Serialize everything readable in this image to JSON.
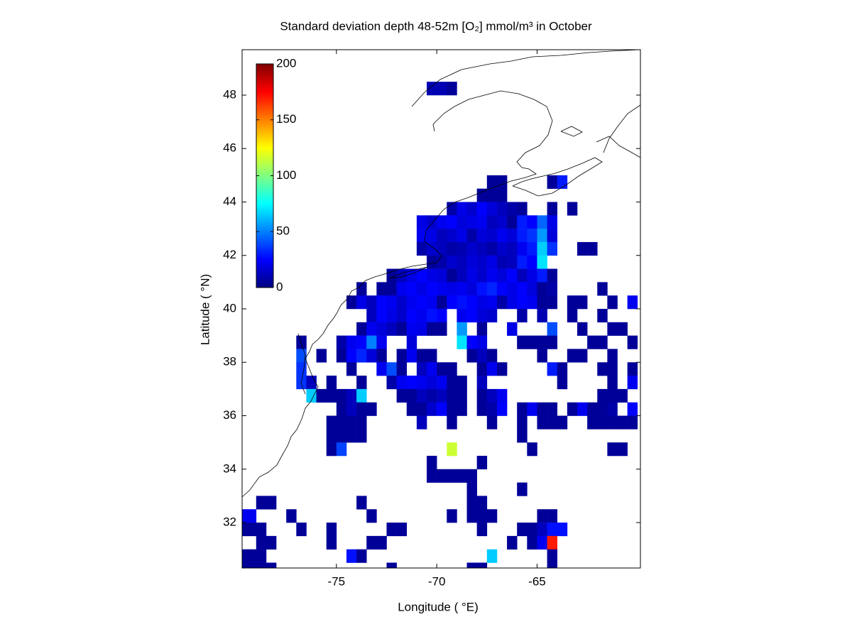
{
  "chart_data": {
    "type": "heatmap",
    "title": "Standard deviation depth 48-52m [O₂] mmol/m³ in October",
    "xlabel": "Longitude ( °E)",
    "ylabel": "Latitude ( °N)",
    "colormap": "jet",
    "clim": [
      0,
      200
    ],
    "colorbar_ticks": [
      0,
      50,
      100,
      150,
      200
    ],
    "xlim": [
      -79.7,
      -59.85
    ],
    "ylim": [
      30.3,
      49.7
    ],
    "xticks": [
      -75,
      -70,
      -65
    ],
    "yticks": [
      32,
      34,
      36,
      38,
      40,
      42,
      44,
      46,
      48
    ],
    "x": [
      -79.75,
      -79.25,
      -78.75,
      -78.25,
      -77.75,
      -77.25,
      -76.75,
      -76.25,
      -75.75,
      -75.25,
      -74.75,
      -74.25,
      -73.75,
      -73.25,
      -72.75,
      -72.25,
      -71.75,
      -71.25,
      -70.75,
      -70.25,
      -69.75,
      -69.25,
      -68.75,
      -68.25,
      -67.75,
      -67.25,
      -66.75,
      -66.25,
      -65.75,
      -65.25,
      -64.75,
      -64.25,
      -63.75,
      -63.25,
      -62.75,
      -62.25,
      -61.75,
      -61.25,
      -60.75,
      -60.25
    ],
    "y": [
      48.25,
      44.75,
      44.25,
      43.75,
      43.25,
      42.75,
      42.25,
      41.75,
      41.25,
      40.75,
      40.25,
      39.75,
      39.25,
      38.75,
      38.25,
      37.75,
      37.25,
      36.75,
      36.25,
      35.75,
      35.25,
      34.75,
      34.25,
      33.75,
      33.25,
      32.75,
      32.25,
      31.75,
      31.25,
      30.75,
      30.25
    ],
    "z": [
      [
        null,
        null,
        null,
        null,
        null,
        null,
        null,
        null,
        null,
        null,
        null,
        null,
        null,
        null,
        null,
        null,
        null,
        null,
        null,
        10,
        10,
        5,
        null,
        null,
        null,
        null,
        null,
        null,
        null,
        null,
        null,
        null,
        null,
        null,
        null,
        null,
        null,
        null,
        null,
        null
      ],
      [
        null,
        null,
        null,
        null,
        null,
        null,
        null,
        null,
        null,
        null,
        null,
        null,
        null,
        null,
        null,
        null,
        null,
        null,
        null,
        null,
        null,
        null,
        null,
        null,
        null,
        5,
        5,
        null,
        null,
        null,
        null,
        5,
        30,
        null,
        null,
        null,
        null,
        null,
        null,
        null
      ],
      [
        null,
        null,
        null,
        null,
        null,
        null,
        null,
        null,
        null,
        null,
        null,
        null,
        null,
        null,
        null,
        null,
        null,
        null,
        null,
        null,
        null,
        null,
        null,
        null,
        5,
        5,
        5,
        null,
        null,
        null,
        null,
        null,
        null,
        null,
        null,
        null,
        null,
        null,
        null,
        null
      ],
      [
        null,
        null,
        null,
        null,
        null,
        null,
        null,
        null,
        null,
        null,
        null,
        null,
        null,
        null,
        null,
        null,
        null,
        null,
        null,
        null,
        null,
        8,
        20,
        15,
        25,
        18,
        12,
        8,
        5,
        null,
        null,
        5,
        null,
        5,
        null,
        null,
        null,
        null,
        null,
        null
      ],
      [
        null,
        null,
        null,
        null,
        null,
        null,
        null,
        null,
        null,
        null,
        null,
        null,
        null,
        null,
        null,
        null,
        null,
        null,
        20,
        15,
        22,
        25,
        18,
        20,
        22,
        12,
        15,
        5,
        30,
        25,
        45,
        20,
        null,
        null,
        null,
        null,
        null,
        null,
        null,
        null
      ],
      [
        null,
        null,
        null,
        null,
        null,
        null,
        null,
        null,
        null,
        null,
        null,
        null,
        null,
        null,
        null,
        null,
        null,
        null,
        22,
        20,
        12,
        15,
        20,
        8,
        18,
        15,
        22,
        18,
        30,
        35,
        55,
        18,
        null,
        null,
        null,
        null,
        null,
        null,
        null,
        null
      ],
      [
        null,
        null,
        null,
        null,
        null,
        null,
        null,
        null,
        null,
        null,
        null,
        null,
        null,
        null,
        null,
        null,
        null,
        null,
        8,
        15,
        12,
        8,
        10,
        15,
        12,
        8,
        15,
        12,
        22,
        30,
        65,
        35,
        null,
        null,
        5,
        5,
        null,
        null,
        null,
        null
      ],
      [
        null,
        null,
        null,
        null,
        null,
        null,
        null,
        null,
        null,
        null,
        null,
        null,
        null,
        null,
        null,
        null,
        null,
        null,
        null,
        5,
        8,
        15,
        12,
        18,
        15,
        20,
        10,
        12,
        30,
        25,
        70,
        null,
        null,
        null,
        null,
        null,
        null,
        null,
        null,
        null
      ],
      [
        null,
        null,
        null,
        null,
        null,
        null,
        null,
        null,
        null,
        null,
        null,
        null,
        null,
        null,
        null,
        5,
        12,
        20,
        25,
        20,
        18,
        5,
        12,
        20,
        15,
        22,
        18,
        25,
        12,
        20,
        30,
        5,
        null,
        null,
        null,
        null,
        null,
        null,
        null,
        null
      ],
      [
        null,
        null,
        null,
        null,
        null,
        null,
        null,
        null,
        null,
        null,
        null,
        null,
        5,
        null,
        5,
        5,
        22,
        25,
        20,
        25,
        22,
        20,
        22,
        18,
        28,
        32,
        25,
        20,
        25,
        18,
        5,
        8,
        null,
        null,
        null,
        null,
        5,
        null,
        null,
        null
      ],
      [
        null,
        null,
        null,
        null,
        null,
        null,
        null,
        null,
        null,
        null,
        null,
        5,
        20,
        12,
        25,
        22,
        15,
        22,
        25,
        22,
        5,
        25,
        28,
        25,
        20,
        22,
        8,
        20,
        25,
        22,
        5,
        5,
        null,
        5,
        5,
        null,
        null,
        5,
        null,
        22
      ],
      [
        null,
        null,
        null,
        null,
        null,
        null,
        null,
        null,
        null,
        null,
        null,
        null,
        null,
        12,
        25,
        20,
        15,
        25,
        22,
        28,
        25,
        null,
        22,
        25,
        18,
        15,
        null,
        null,
        8,
        null,
        10,
        null,
        null,
        5,
        null,
        null,
        5,
        null,
        null,
        null
      ],
      [
        null,
        null,
        null,
        null,
        null,
        null,
        null,
        null,
        null,
        null,
        null,
        null,
        5,
        22,
        18,
        12,
        5,
        22,
        20,
        5,
        5,
        null,
        55,
        null,
        5,
        null,
        null,
        20,
        null,
        null,
        null,
        40,
        null,
        null,
        5,
        null,
        null,
        5,
        5,
        null
      ],
      [
        null,
        null,
        null,
        null,
        null,
        null,
        5,
        null,
        null,
        null,
        8,
        22,
        25,
        50,
        22,
        null,
        null,
        18,
        null,
        null,
        null,
        null,
        70,
        25,
        20,
        null,
        null,
        null,
        5,
        5,
        5,
        5,
        null,
        null,
        null,
        5,
        5,
        null,
        null,
        5
      ],
      [
        null,
        null,
        null,
        null,
        null,
        null,
        40,
        null,
        5,
        null,
        5,
        25,
        32,
        18,
        5,
        null,
        5,
        22,
        5,
        5,
        null,
        null,
        null,
        5,
        12,
        5,
        null,
        null,
        null,
        null,
        5,
        null,
        null,
        5,
        5,
        null,
        null,
        5,
        null,
        null
      ],
      [
        null,
        null,
        null,
        null,
        null,
        null,
        35,
        null,
        null,
        null,
        null,
        5,
        null,
        null,
        22,
        40,
        5,
        null,
        12,
        22,
        5,
        5,
        null,
        null,
        5,
        22,
        5,
        null,
        null,
        null,
        null,
        30,
        5,
        null,
        null,
        null,
        5,
        5,
        null,
        5
      ],
      [
        null,
        null,
        null,
        null,
        null,
        null,
        35,
        12,
        null,
        5,
        null,
        null,
        5,
        null,
        null,
        8,
        22,
        25,
        22,
        18,
        22,
        5,
        5,
        null,
        12,
        null,
        null,
        null,
        null,
        null,
        null,
        null,
        5,
        null,
        null,
        null,
        null,
        5,
        null,
        22
      ],
      [
        null,
        null,
        null,
        null,
        null,
        null,
        null,
        65,
        5,
        5,
        5,
        12,
        65,
        null,
        null,
        null,
        5,
        5,
        12,
        8,
        12,
        5,
        5,
        null,
        5,
        12,
        22,
        null,
        null,
        null,
        null,
        null,
        null,
        null,
        null,
        null,
        5,
        5,
        5,
        null
      ],
      [
        null,
        null,
        null,
        null,
        null,
        null,
        null,
        null,
        null,
        null,
        5,
        12,
        5,
        5,
        null,
        null,
        null,
        5,
        5,
        15,
        25,
        5,
        5,
        null,
        5,
        8,
        25,
        null,
        5,
        22,
        5,
        5,
        null,
        5,
        22,
        5,
        5,
        8,
        null,
        25
      ],
      [
        null,
        null,
        null,
        null,
        null,
        null,
        null,
        null,
        null,
        5,
        5,
        5,
        5,
        null,
        null,
        null,
        null,
        null,
        12,
        null,
        null,
        5,
        null,
        null,
        null,
        5,
        null,
        null,
        5,
        null,
        5,
        5,
        5,
        null,
        null,
        5,
        5,
        5,
        5,
        5
      ],
      [
        null,
        null,
        null,
        null,
        null,
        null,
        null,
        null,
        null,
        5,
        5,
        5,
        5,
        null,
        null,
        null,
        null,
        null,
        null,
        null,
        null,
        null,
        null,
        null,
        null,
        null,
        null,
        null,
        5,
        null,
        null,
        null,
        null,
        null,
        null,
        null,
        null,
        null,
        null,
        null
      ],
      [
        null,
        null,
        null,
        null,
        null,
        null,
        null,
        null,
        null,
        5,
        38,
        null,
        null,
        null,
        null,
        null,
        null,
        null,
        null,
        null,
        null,
        115,
        null,
        null,
        null,
        null,
        null,
        null,
        null,
        5,
        null,
        null,
        null,
        null,
        null,
        null,
        null,
        5,
        5,
        null
      ],
      [
        null,
        null,
        null,
        null,
        null,
        null,
        null,
        null,
        null,
        null,
        null,
        null,
        null,
        null,
        null,
        null,
        null,
        null,
        null,
        5,
        null,
        null,
        null,
        null,
        5,
        null,
        null,
        null,
        null,
        null,
        null,
        null,
        null,
        null,
        null,
        null,
        null,
        null,
        null,
        null
      ],
      [
        null,
        null,
        null,
        null,
        null,
        null,
        null,
        null,
        null,
        null,
        null,
        null,
        null,
        null,
        null,
        null,
        null,
        null,
        null,
        5,
        5,
        5,
        5,
        5,
        null,
        null,
        null,
        null,
        null,
        null,
        null,
        null,
        null,
        null,
        null,
        null,
        null,
        null,
        null,
        null
      ],
      [
        null,
        null,
        null,
        null,
        null,
        null,
        null,
        null,
        null,
        null,
        null,
        null,
        null,
        null,
        null,
        null,
        null,
        null,
        null,
        null,
        null,
        null,
        null,
        5,
        null,
        null,
        null,
        null,
        5,
        null,
        null,
        null,
        null,
        null,
        null,
        null,
        null,
        null,
        null,
        null
      ],
      [
        null,
        null,
        5,
        5,
        null,
        null,
        null,
        null,
        null,
        null,
        null,
        null,
        5,
        null,
        null,
        null,
        null,
        null,
        null,
        null,
        null,
        null,
        null,
        5,
        5,
        null,
        null,
        null,
        null,
        null,
        null,
        null,
        null,
        null,
        null,
        null,
        null,
        null,
        null,
        null
      ],
      [
        22,
        22,
        null,
        null,
        null,
        5,
        null,
        null,
        null,
        null,
        null,
        null,
        null,
        5,
        null,
        null,
        null,
        null,
        null,
        null,
        null,
        5,
        null,
        5,
        5,
        5,
        null,
        null,
        null,
        null,
        5,
        5,
        null,
        null,
        null,
        null,
        null,
        null,
        null,
        null
      ],
      [
        5,
        5,
        5,
        null,
        null,
        null,
        5,
        null,
        null,
        5,
        null,
        null,
        null,
        null,
        null,
        5,
        5,
        null,
        null,
        null,
        null,
        null,
        null,
        null,
        5,
        null,
        null,
        null,
        5,
        5,
        12,
        28,
        28,
        null,
        null,
        null,
        null,
        null,
        null,
        null
      ],
      [
        null,
        null,
        5,
        5,
        null,
        null,
        null,
        null,
        null,
        5,
        null,
        null,
        null,
        5,
        5,
        null,
        null,
        null,
        null,
        null,
        null,
        null,
        null,
        null,
        null,
        null,
        null,
        5,
        null,
        5,
        22,
        170,
        null,
        null,
        null,
        null,
        null,
        null,
        null,
        null
      ],
      [
        5,
        5,
        5,
        null,
        null,
        null,
        null,
        null,
        null,
        null,
        null,
        28,
        5,
        null,
        null,
        null,
        null,
        null,
        null,
        null,
        null,
        null,
        null,
        null,
        null,
        65,
        null,
        null,
        null,
        null,
        null,
        5,
        null,
        null,
        null,
        null,
        null,
        null,
        null,
        null
      ],
      [
        5,
        5,
        5,
        5,
        null,
        null,
        null,
        null,
        null,
        null,
        null,
        null,
        null,
        null,
        null,
        5,
        null,
        null,
        null,
        null,
        null,
        null,
        null,
        5,
        5,
        null,
        null,
        null,
        null,
        null,
        null,
        5,
        null,
        null,
        null,
        null,
        null,
        null,
        null,
        null
      ]
    ]
  }
}
